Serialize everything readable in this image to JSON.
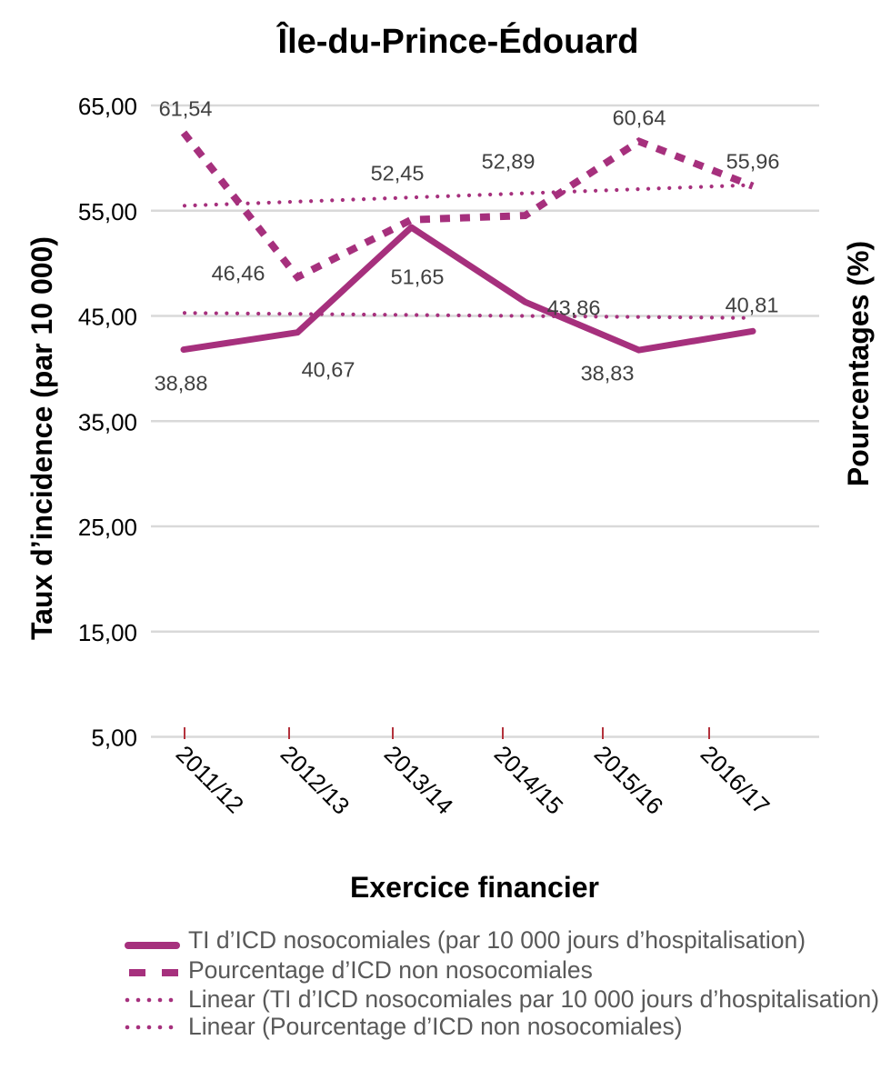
{
  "chart_data": {
    "type": "line",
    "title": "Île-du-Prince-Édouard",
    "xlabel": "Exercice financier",
    "ylabel": "Taux d’incidence (par 10 000)",
    "y2label": "Pourcentages (%)",
    "categories": [
      "2011/12",
      "2012/13",
      "2013/14",
      "2014/15",
      "2015/16",
      "2016/17"
    ],
    "ylim": [
      5,
      65
    ],
    "yticks": [
      5,
      15,
      25,
      35,
      45,
      55,
      65
    ],
    "ytick_labels": [
      "5,00",
      "15,00",
      "25,00",
      "35,00",
      "45,00",
      "55,00",
      "65,00"
    ],
    "grid": true,
    "legend_position": "bottom",
    "series": [
      {
        "name": "TI d’ICD nosocomiales (par 10 000 jours d’hospitalisation)",
        "line_style": "solid",
        "values": [
          38.88,
          40.67,
          51.65,
          43.86,
          38.83,
          40.81
        ],
        "data_labels": [
          "38,88",
          "40,67",
          "51,65",
          "43,86",
          "38,83",
          "40,81"
        ]
      },
      {
        "name": "Pourcentage d’ICD non nosocomiales",
        "line_style": "dashed",
        "values": [
          61.54,
          46.46,
          52.45,
          52.89,
          60.64,
          55.96
        ],
        "data_labels": [
          "61,54",
          "46,46",
          "52,45",
          "52,89",
          "60,64",
          "55,96"
        ]
      }
    ],
    "trendlines": [
      {
        "name": "Linear (TI d’ICD nosocomiales par 10 000 jours d’hospitalisation)",
        "fit": "linear",
        "source_series": 0,
        "line_style": "dotted"
      },
      {
        "name": "Linear (Pourcentage d’ICD non nosocomiales)",
        "fit": "linear",
        "source_series": 1,
        "line_style": "dotted"
      }
    ]
  },
  "colors": {
    "series": "#A6307D",
    "gridline": "#D9D9D9",
    "axis_tick": "#B3323C",
    "axis_text": "#000000",
    "data_label": "#404040",
    "legend_text": "#595959",
    "title_text": "#000000"
  }
}
